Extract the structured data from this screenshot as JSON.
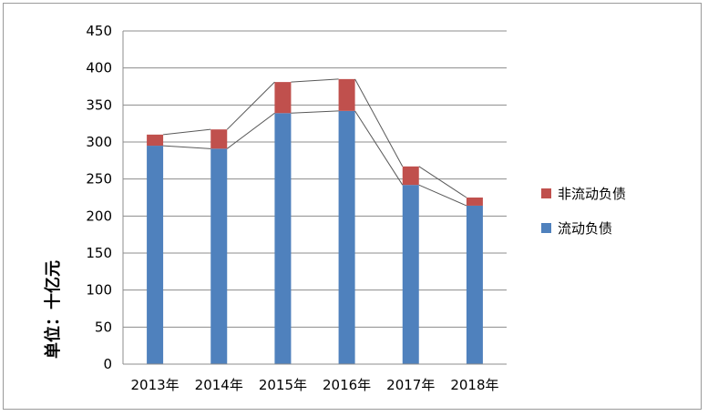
{
  "chart_data": {
    "type": "bar",
    "stacked": true,
    "categories": [
      "2013年",
      "2014年",
      "2015年",
      "2016年",
      "2017年",
      "2018年"
    ],
    "series": [
      {
        "name": "流动负债",
        "values": [
          295,
          291,
          339,
          342,
          242,
          214
        ],
        "color": "#4f81bd"
      },
      {
        "name": "非流动负债",
        "values": [
          15,
          26,
          42,
          43,
          25,
          11
        ],
        "color": "#c0504d"
      }
    ],
    "series_lines": true,
    "title": "",
    "xlabel": "",
    "ylabel": "单位：十亿元",
    "ylim": [
      0,
      450
    ],
    "yticks": [
      0,
      50,
      100,
      150,
      200,
      250,
      300,
      350,
      400,
      450
    ],
    "grid": true,
    "legend_position": "right"
  }
}
